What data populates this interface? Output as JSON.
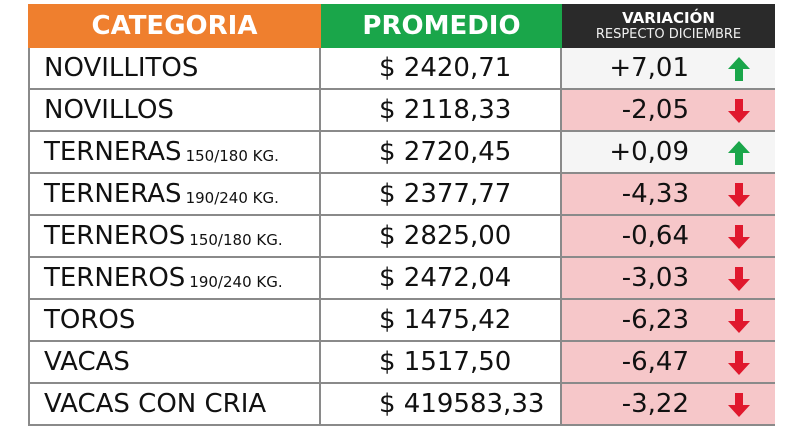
{
  "header": {
    "categoria": "CATEGORIA",
    "promedio": "PROMEDIO",
    "variacion": "VARIACIÓN",
    "variacion_sub": "RESPECTO DICIEMBRE"
  },
  "colors": {
    "up_arrow": "#1aa64a",
    "down_arrow": "#e0182d"
  },
  "rows": [
    {
      "categoria": "NOVILLITOS",
      "sufijo": "",
      "promedio": "$ 2420,71",
      "variacion": "+7,01",
      "trend": "up"
    },
    {
      "categoria": "NOVILLOS",
      "sufijo": "",
      "promedio": "$ 2118,33",
      "variacion": "-2,05",
      "trend": "down"
    },
    {
      "categoria": "TERNERAS",
      "sufijo": "150/180 KG.",
      "promedio": "$ 2720,45",
      "variacion": "+0,09",
      "trend": "up"
    },
    {
      "categoria": "TERNERAS",
      "sufijo": "190/240 KG.",
      "promedio": "$ 2377,77",
      "variacion": "-4,33",
      "trend": "down"
    },
    {
      "categoria": "TERNEROS",
      "sufijo": "150/180 KG.",
      "promedio": "$ 2825,00",
      "variacion": "-0,64",
      "trend": "down"
    },
    {
      "categoria": "TERNEROS",
      "sufijo": "190/240 KG.",
      "promedio": "$ 2472,04",
      "variacion": "-3,03",
      "trend": "down"
    },
    {
      "categoria": "TOROS",
      "sufijo": "",
      "promedio": "$ 1475,42",
      "variacion": "-6,23",
      "trend": "down"
    },
    {
      "categoria": "VACAS",
      "sufijo": "",
      "promedio": "$ 1517,50",
      "variacion": "-6,47",
      "trend": "down"
    },
    {
      "categoria": "VACAS CON CRIA",
      "sufijo": "",
      "promedio": "$ 419583,33",
      "variacion": "-3,22",
      "trend": "down"
    }
  ]
}
